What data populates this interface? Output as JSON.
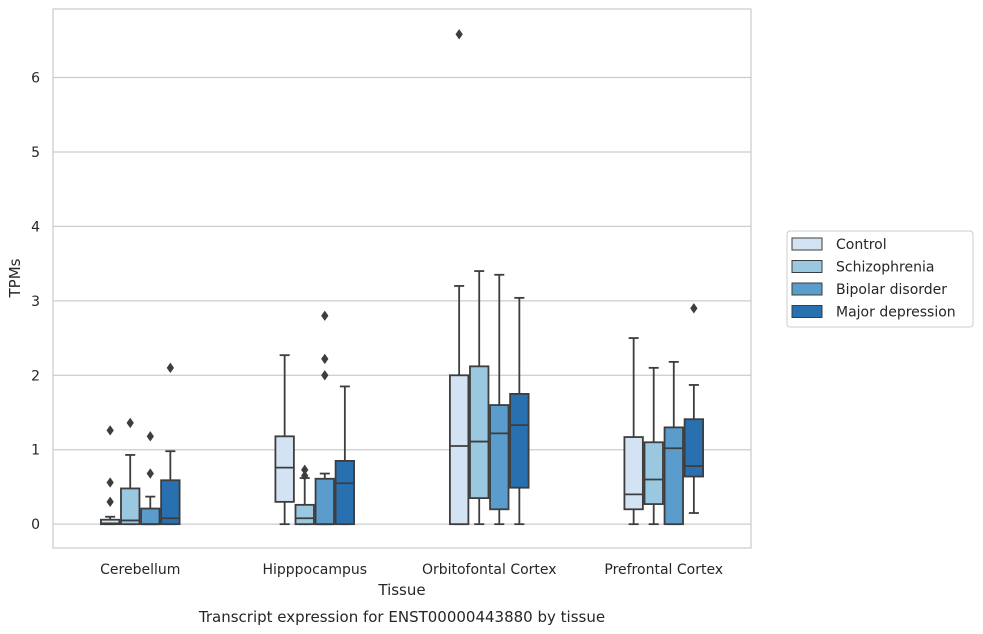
{
  "chart_data": {
    "type": "boxplot",
    "title": "Transcript expression for ENST00000443880 by tissue",
    "xlabel": "Tissue",
    "ylabel": "TPMs",
    "ylim": [
      -0.32,
      6.92
    ],
    "yticks": [
      0,
      1,
      2,
      3,
      4,
      5,
      6
    ],
    "grid": "horizontal",
    "legend_position": "right",
    "categories": [
      "Cerebellum",
      "Hipppocampus",
      "Orbitofontal Cortex",
      "Prefrontal Cortex"
    ],
    "series": [
      {
        "name": "Control",
        "color": "#d3e3f3",
        "boxes": [
          {
            "whisker_low": 0.0,
            "q1": 0.0,
            "median": 0.01,
            "q3": 0.06,
            "whisker_high": 0.1,
            "outliers": [
              0.3,
              0.56,
              1.26
            ]
          },
          {
            "whisker_low": 0.0,
            "q1": 0.3,
            "median": 0.76,
            "q3": 1.18,
            "whisker_high": 2.27,
            "outliers": []
          },
          {
            "whisker_low": 0.0,
            "q1": 0.0,
            "median": 1.05,
            "q3": 2.0,
            "whisker_high": 3.2,
            "outliers": [
              6.58
            ]
          },
          {
            "whisker_low": 0.0,
            "q1": 0.2,
            "median": 0.4,
            "q3": 1.17,
            "whisker_high": 2.5,
            "outliers": []
          }
        ]
      },
      {
        "name": "Schizophrenia",
        "color": "#9ac8e0",
        "boxes": [
          {
            "whisker_low": 0.0,
            "q1": 0.0,
            "median": 0.05,
            "q3": 0.48,
            "whisker_high": 0.93,
            "outliers": [
              1.36
            ]
          },
          {
            "whisker_low": 0.0,
            "q1": 0.0,
            "median": 0.08,
            "q3": 0.26,
            "whisker_high": 0.62,
            "outliers": [
              0.65,
              0.73
            ]
          },
          {
            "whisker_low": 0.0,
            "q1": 0.35,
            "median": 1.11,
            "q3": 2.12,
            "whisker_high": 3.4,
            "outliers": []
          },
          {
            "whisker_low": 0.0,
            "q1": 0.27,
            "median": 0.6,
            "q3": 1.1,
            "whisker_high": 2.1,
            "outliers": []
          }
        ]
      },
      {
        "name": "Bipolar disorder",
        "color": "#5a9ccc",
        "boxes": [
          {
            "whisker_low": 0.0,
            "q1": 0.0,
            "median": 0.0,
            "q3": 0.21,
            "whisker_high": 0.37,
            "outliers": [
              0.68,
              1.18
            ]
          },
          {
            "whisker_low": 0.0,
            "q1": 0.0,
            "median": 0.0,
            "q3": 0.61,
            "whisker_high": 0.68,
            "outliers": [
              2.0,
              2.22,
              2.8
            ]
          },
          {
            "whisker_low": 0.0,
            "q1": 0.2,
            "median": 1.22,
            "q3": 1.6,
            "whisker_high": 3.35,
            "outliers": []
          },
          {
            "whisker_low": 0.0,
            "q1": 0.0,
            "median": 1.02,
            "q3": 1.3,
            "whisker_high": 2.18,
            "outliers": []
          }
        ]
      },
      {
        "name": "Major depression",
        "color": "#2970b0",
        "boxes": [
          {
            "whisker_low": 0.0,
            "q1": 0.0,
            "median": 0.08,
            "q3": 0.59,
            "whisker_high": 0.98,
            "outliers": [
              2.1
            ]
          },
          {
            "whisker_low": 0.0,
            "q1": 0.0,
            "median": 0.55,
            "q3": 0.85,
            "whisker_high": 1.85,
            "outliers": []
          },
          {
            "whisker_low": 0.0,
            "q1": 0.49,
            "median": 1.33,
            "q3": 1.75,
            "whisker_high": 3.04,
            "outliers": []
          },
          {
            "whisker_low": 0.15,
            "q1": 0.64,
            "median": 0.78,
            "q3": 1.41,
            "whisker_high": 1.87,
            "outliers": [
              2.9
            ]
          }
        ]
      }
    ]
  }
}
